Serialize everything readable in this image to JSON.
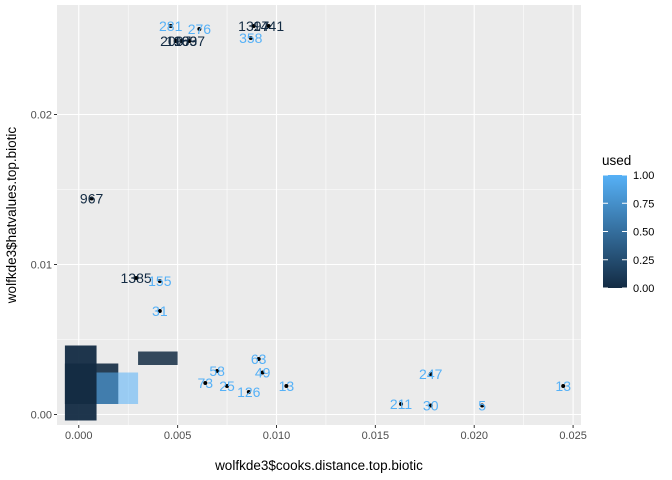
{
  "chart_data": {
    "type": "scatter",
    "xlabel": "wolfkde3$cooks.distance.top.biotic",
    "ylabel": "wolfkde3$hatvalues.top.biotic",
    "xlim": [
      -0.0011,
      0.0254
    ],
    "ylim": [
      -0.0007,
      0.0273
    ],
    "x_ticks": [
      0.0,
      0.005,
      0.01,
      0.015,
      0.02,
      0.025
    ],
    "x_tick_labels": [
      "0.000",
      "0.005",
      "0.010",
      "0.015",
      "0.020",
      "0.025"
    ],
    "y_ticks": [
      0.0,
      0.01,
      0.02
    ],
    "y_tick_labels": [
      "0.00",
      "0.01",
      "0.02"
    ],
    "grid": true,
    "legend": {
      "title": "used",
      "position": "right",
      "type": "colorbar",
      "low_color": "#132b43",
      "high_color": "#56b1f7",
      "range": [
        0,
        1
      ],
      "tick_values": [
        0.0,
        0.25,
        0.5,
        0.75,
        1.0
      ],
      "tick_labels": [
        "0.00",
        "0.25",
        "0.50",
        "0.75",
        "1.00"
      ]
    },
    "colors": {
      "panel": "#ebebeb",
      "grid": "#ffffff",
      "point": "#000000"
    },
    "points": [
      {
        "x": 0.00465,
        "y": 0.0259,
        "used": 1,
        "label": "281"
      },
      {
        "x": 0.0061,
        "y": 0.0257,
        "used": 1,
        "label": "276"
      },
      {
        "x": 0.0052,
        "y": 0.0249,
        "used": 0,
        "label": "1963"
      },
      {
        "x": 0.0056,
        "y": 0.0249,
        "used": 0,
        "label": "1897"
      },
      {
        "x": 0.0049,
        "y": 0.0249,
        "used": 0,
        "label": "2007"
      },
      {
        "x": 0.00885,
        "y": 0.0259,
        "used": 0,
        "label": "1397"
      },
      {
        "x": 0.0096,
        "y": 0.0259,
        "used": 0,
        "label": "1441"
      },
      {
        "x": 0.0087,
        "y": 0.0251,
        "used": 1,
        "label": "358"
      },
      {
        "x": 0.00065,
        "y": 0.0144,
        "used": 0,
        "label": "967"
      },
      {
        "x": 0.0029,
        "y": 0.0091,
        "used": 0,
        "label": "1385"
      },
      {
        "x": 0.0041,
        "y": 0.0089,
        "used": 1,
        "label": "155"
      },
      {
        "x": 0.0041,
        "y": 0.0069,
        "used": 1,
        "label": "31"
      },
      {
        "x": 0.0091,
        "y": 0.0037,
        "used": 1,
        "label": "63"
      },
      {
        "x": 0.0093,
        "y": 0.0028,
        "used": 1,
        "label": "49"
      },
      {
        "x": 0.007,
        "y": 0.0029,
        "used": 1,
        "label": "58"
      },
      {
        "x": 0.0064,
        "y": 0.0021,
        "used": 1,
        "label": "73"
      },
      {
        "x": 0.0075,
        "y": 0.0019,
        "used": 1,
        "label": "25"
      },
      {
        "x": 0.0086,
        "y": 0.0015,
        "used": 1,
        "label": "126"
      },
      {
        "x": 0.0105,
        "y": 0.0019,
        "used": 1,
        "label": "13"
      },
      {
        "x": 0.0178,
        "y": 0.0027,
        "used": 1,
        "label": "247"
      },
      {
        "x": 0.0163,
        "y": 0.0007,
        "used": 1,
        "label": "211"
      },
      {
        "x": 0.0178,
        "y": 0.0006,
        "used": 1,
        "label": "30"
      },
      {
        "x": 0.0204,
        "y": 0.0006,
        "used": 1,
        "label": "5"
      },
      {
        "x": 0.0245,
        "y": 0.0019,
        "used": 1,
        "label": "13"
      }
    ]
  }
}
